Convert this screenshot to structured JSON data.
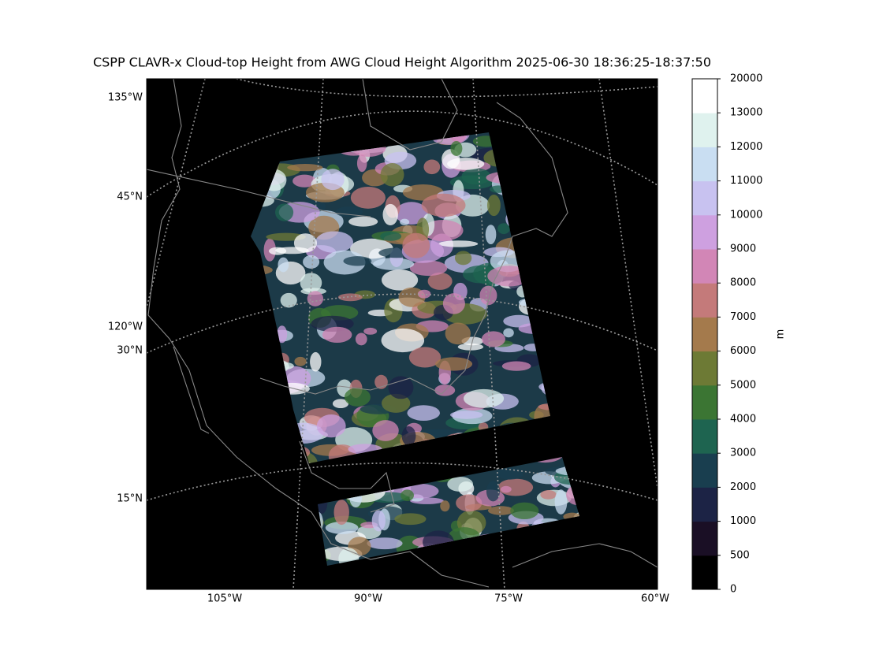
{
  "title": "CSPP CLAVR-x Cloud-top Height from AWG Cloud Height Algorithm 2025-06-30 18:36:25-18:37:50",
  "map": {
    "lon_labels": [
      "105°W",
      "90°W",
      "75°W",
      "60°W"
    ],
    "lat_labels": [
      "135°W",
      "45°N",
      "120°W",
      "30°N",
      "15°N"
    ]
  },
  "colorbar": {
    "label": "m",
    "levels": [
      0,
      500,
      1000,
      2000,
      3000,
      4000,
      5000,
      6000,
      7000,
      8000,
      9000,
      10000,
      11000,
      12000,
      13000,
      20000
    ],
    "colors": [
      "#000000",
      "#1a0f25",
      "#1c2345",
      "#193e4f",
      "#1e6450",
      "#3b7533",
      "#6d7a35",
      "#a47a4c",
      "#c47a7a",
      "#d286b6",
      "#cea0e0",
      "#c8c2f0",
      "#c9def2",
      "#dff2ee",
      "#ffffff"
    ]
  }
}
